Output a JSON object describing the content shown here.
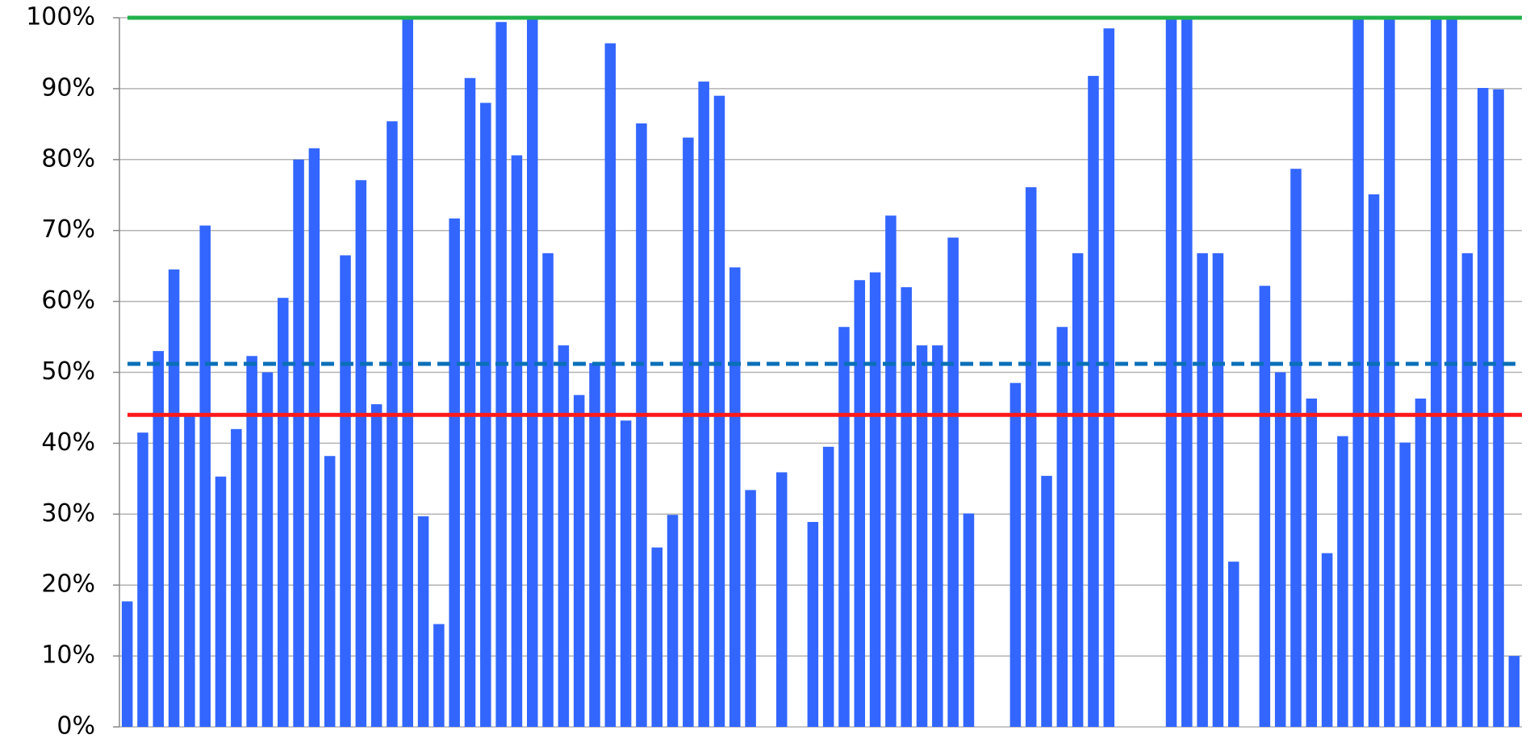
{
  "chart_data": {
    "type": "bar",
    "color": "#3366ff",
    "values": [
      17.7,
      41.5,
      53,
      64.5,
      44,
      70.7,
      35.3,
      42,
      52.3,
      50,
      60.5,
      80,
      81.6,
      38.2,
      66.5,
      77.1,
      45.5,
      85.4,
      100,
      29.7,
      14.5,
      71.7,
      91.5,
      88,
      99.4,
      80.6,
      100,
      66.8,
      53.8,
      46.8,
      51.3,
      96.4,
      43.2,
      85.1,
      25.3,
      29.9,
      83.1,
      91,
      89,
      64.8,
      33.4,
      0,
      35.9,
      0,
      28.9,
      39.5,
      56.4,
      63,
      64.1,
      72.1,
      62,
      53.8,
      53.8,
      69,
      30.1,
      0,
      0,
      48.5,
      76.1,
      35.4,
      56.4,
      66.8,
      91.8,
      98.5,
      0,
      0,
      0,
      100,
      100,
      66.8,
      66.8,
      23.3,
      0,
      62.2,
      50,
      78.7,
      46.3,
      24.5,
      41,
      100,
      75.1,
      100,
      40.1,
      46.3,
      100,
      100,
      66.8,
      90.1,
      89.9,
      10
    ],
    "ylim": [
      0,
      100
    ],
    "yticks": [
      {
        "value": 0,
        "label": "0%"
      },
      {
        "value": 10,
        "label": "10%"
      },
      {
        "value": 20,
        "label": "20%"
      },
      {
        "value": 30,
        "label": "30%"
      },
      {
        "value": 40,
        "label": "40%"
      },
      {
        "value": 50,
        "label": "50%"
      },
      {
        "value": 60,
        "label": "60%"
      },
      {
        "value": 70,
        "label": "70%"
      },
      {
        "value": 80,
        "label": "80%"
      },
      {
        "value": 90,
        "label": "90%"
      },
      {
        "value": 100,
        "label": "100%"
      }
    ],
    "grid": true,
    "reference_lines": [
      {
        "value": 100,
        "color": "#22b14c",
        "style": "solid"
      },
      {
        "value": 51.2,
        "color": "#0a6fb8",
        "style": "dashed"
      },
      {
        "value": 44,
        "color": "#ff1a1a",
        "style": "solid"
      }
    ]
  }
}
